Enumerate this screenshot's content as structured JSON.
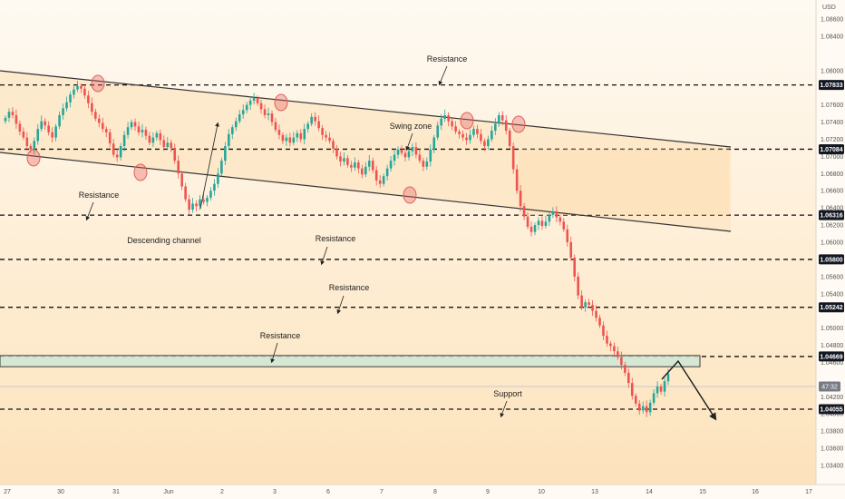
{
  "chart_data": {
    "type": "candlestick",
    "currency": "USD",
    "y_axis": {
      "ylim": [
        1.0322,
        1.0878
      ],
      "tick_labels": [
        "1.08600",
        "1.08400",
        "1.08000",
        "1.07600",
        "1.07400",
        "1.07200",
        "1.07000",
        "1.06800",
        "1.06600",
        "1.06400",
        "1.06200",
        "1.06000",
        "1.05600",
        "1.05400",
        "1.05000",
        "1.04800",
        "1.04600",
        "1.04200",
        "1.04000",
        "1.03800",
        "1.03600",
        "1.03400"
      ],
      "tick_values": [
        1.086,
        1.084,
        1.08,
        1.076,
        1.074,
        1.072,
        1.07,
        1.068,
        1.066,
        1.064,
        1.062,
        1.06,
        1.056,
        1.054,
        1.05,
        1.048,
        1.046,
        1.042,
        1.04,
        1.038,
        1.036,
        1.034
      ]
    },
    "x_axis": {
      "tick_labels": [
        "27",
        "30",
        "31",
        "Jun",
        "2",
        "3",
        "6",
        "7",
        "8",
        "9",
        "10",
        "13",
        "14",
        "15",
        "16",
        "17"
      ]
    },
    "price_levels": [
      {
        "value": 1.07833,
        "label": "1.07833"
      },
      {
        "value": 1.07084,
        "label": "1.07084"
      },
      {
        "value": 1.06316,
        "label": "1.06316"
      },
      {
        "value": 1.058,
        "label": "1.05800"
      },
      {
        "value": 1.05242,
        "label": "1.05242"
      },
      {
        "value": 1.04669,
        "label": "1.04669"
      },
      {
        "value": 1.04055,
        "label": "1.04055"
      }
    ],
    "current_price_label": "47:32",
    "resistance_zone": {
      "low": 1.0455,
      "high": 1.0468
    },
    "series": [
      {
        "values": [
          1.0745,
          1.0752,
          1.0748,
          1.0738,
          1.0729,
          1.0722,
          1.0712,
          1.0708,
          1.0718,
          1.0732,
          1.0741,
          1.0736,
          1.0728,
          1.0722,
          1.0735,
          1.0748,
          1.0756,
          1.0763,
          1.0772,
          1.0778,
          1.0782,
          1.0779,
          1.0771,
          1.0762,
          1.0752,
          1.0744,
          1.0739,
          1.0732,
          1.0728,
          1.0715,
          1.0702,
          1.0699,
          1.0712,
          1.0725,
          1.0734,
          1.074,
          1.0735,
          1.0728,
          1.0731,
          1.0724,
          1.0716,
          1.0722,
          1.0727,
          1.0719,
          1.0711,
          1.0716,
          1.071,
          1.0695,
          1.068,
          1.0665,
          1.065,
          1.0638,
          1.0645,
          1.0642,
          1.065,
          1.0647,
          1.0652,
          1.066,
          1.0668,
          1.068,
          1.0695,
          1.0712,
          1.0726,
          1.0734,
          1.0741,
          1.0749,
          1.0754,
          1.076,
          1.0765,
          1.0768,
          1.0762,
          1.0755,
          1.0748,
          1.075,
          1.074,
          1.0731,
          1.0725,
          1.0718,
          1.0722,
          1.0716,
          1.0722,
          1.0727,
          1.072,
          1.0732,
          1.0738,
          1.0746,
          1.0741,
          1.0733,
          1.0725,
          1.0722,
          1.0718,
          1.0709,
          1.07,
          1.0694,
          1.0698,
          1.069,
          1.0687,
          1.0693,
          1.0686,
          1.0679,
          1.0688,
          1.0695,
          1.0684,
          1.0672,
          1.0668,
          1.0677,
          1.0686,
          1.0695,
          1.0702,
          1.0708,
          1.0704,
          1.0699,
          1.0706,
          1.0711,
          1.0702,
          1.0695,
          1.0688,
          1.0694,
          1.0708,
          1.0722,
          1.0736,
          1.0744,
          1.0748,
          1.0741,
          1.0735,
          1.0729,
          1.0726,
          1.0722,
          1.0719,
          1.0725,
          1.0732,
          1.0726,
          1.0718,
          1.0712,
          1.072,
          1.073,
          1.0738,
          1.0748,
          1.0742,
          1.073,
          1.0712,
          1.0685,
          1.066,
          1.0642,
          1.063,
          1.0618,
          1.0612,
          1.062,
          1.0625,
          1.0619,
          1.0624,
          1.0632,
          1.0636,
          1.0629,
          1.0624,
          1.0615,
          1.06,
          1.0582,
          1.056,
          1.0538,
          1.0524,
          1.053,
          1.0527,
          1.052,
          1.0512,
          1.0503,
          1.0491,
          1.0482,
          1.0479,
          1.0473,
          1.0466,
          1.0457,
          1.0448,
          1.0436,
          1.0421,
          1.0412,
          1.0404,
          1.0409,
          1.0402,
          1.0413,
          1.0424,
          1.0432,
          1.0426,
          1.0438,
          1.0447
        ]
      }
    ],
    "annotations": [
      {
        "text": "Resistance",
        "kind": "resistance",
        "level": "1.07833"
      },
      {
        "text": "Swing  zone"
      },
      {
        "text": "Resistance",
        "kind": "resistance",
        "level": "1.06316"
      },
      {
        "text": "Descending channel"
      },
      {
        "text": "Resistance",
        "kind": "resistance",
        "level": "1.05800"
      },
      {
        "text": "Resistance",
        "kind": "resistance",
        "level": "1.05242"
      },
      {
        "text": "Resistance",
        "kind": "resistance",
        "level": "1.04669"
      },
      {
        "text": "Support",
        "kind": "support",
        "level": "1.04055"
      }
    ],
    "colors": {
      "up": "#26a69a",
      "down": "#ef5350",
      "level_badge": "#131722",
      "current_badge": "#787b86",
      "zone_fill": "#cfe8d6",
      "zone_stroke": "#3b3b3b",
      "touch_circle": "#e35d5b",
      "channel_line": "#333333",
      "channel_fill": "#fde8c8",
      "background_top": "#fef8ee",
      "background_bottom": "#fde3bd"
    }
  }
}
